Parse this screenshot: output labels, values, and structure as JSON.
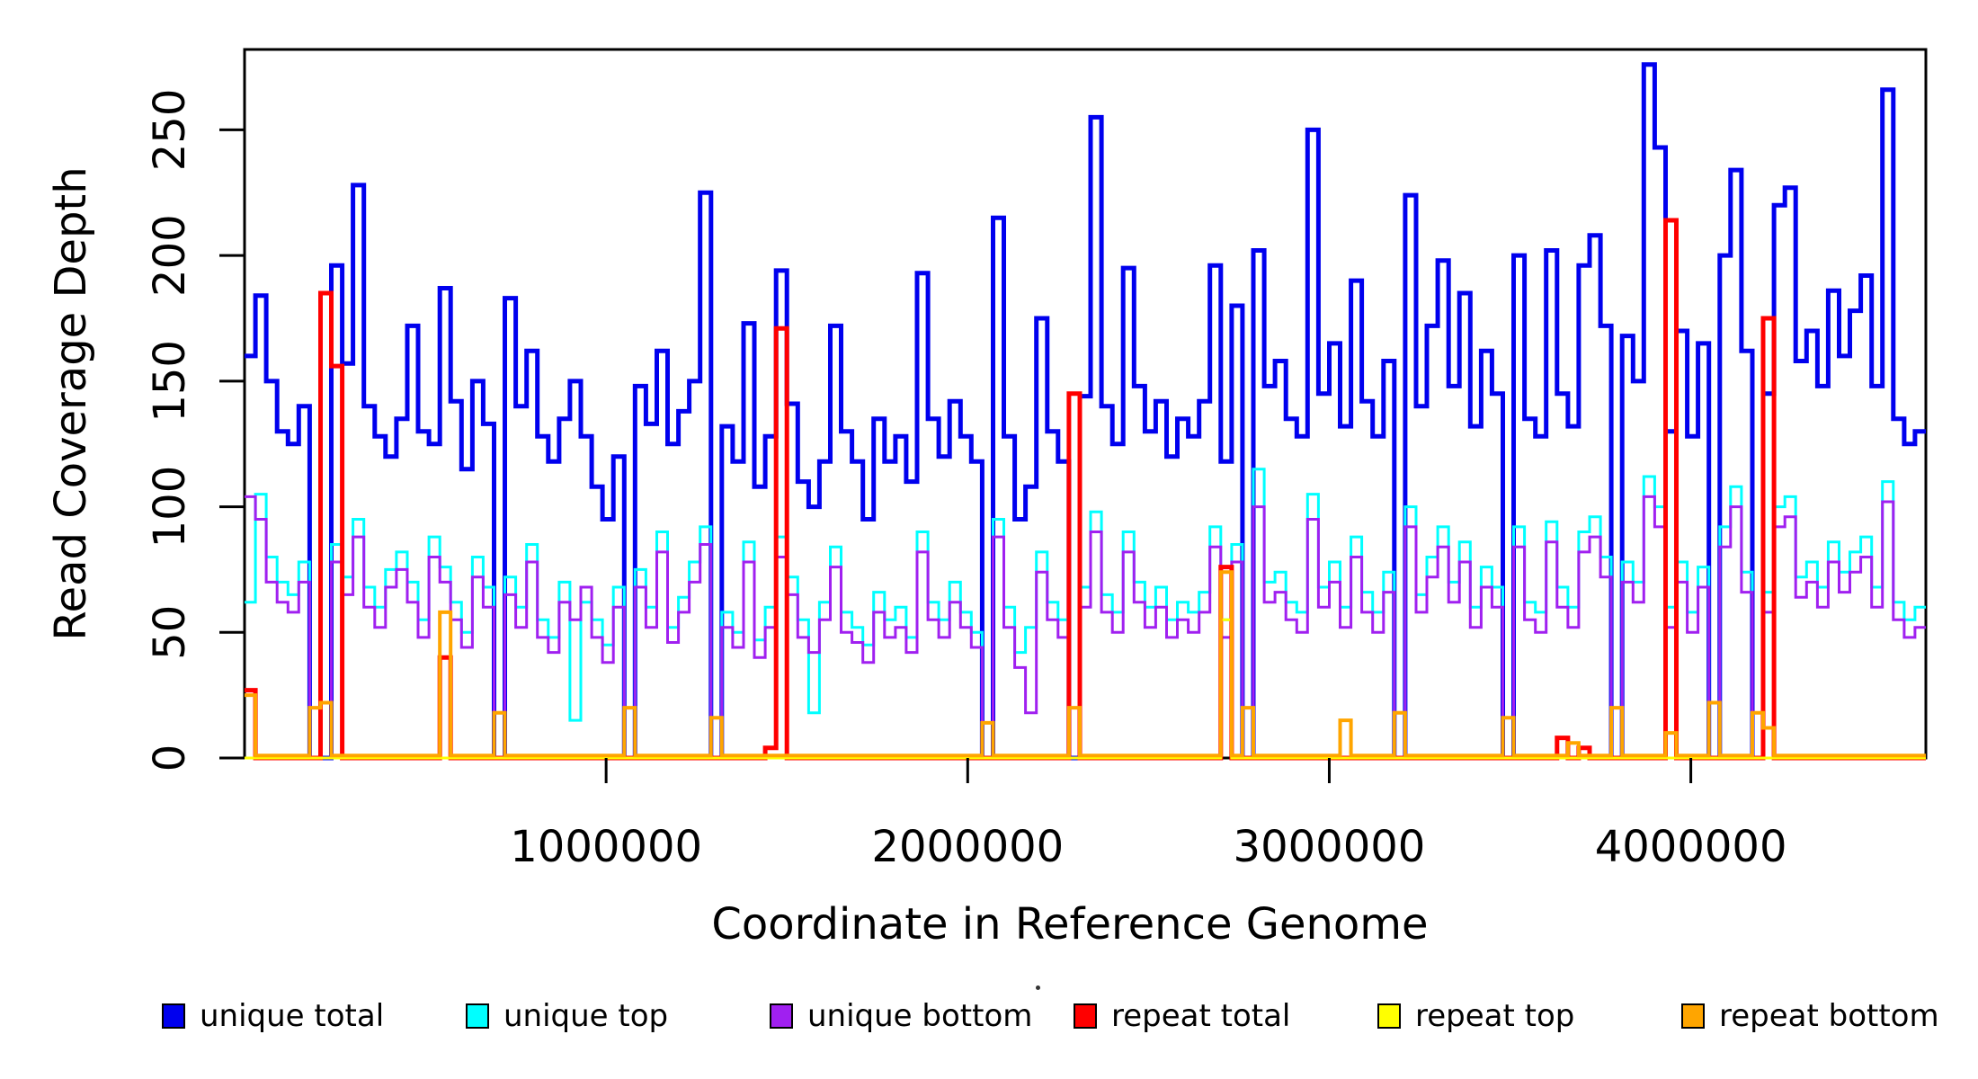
{
  "chart_data": {
    "type": "line",
    "subtype": "step",
    "title": "",
    "xlabel": "Coordinate in Reference Genome",
    "ylabel": "Read Coverage Depth",
    "xlim": [
      0,
      4650000
    ],
    "ylim": [
      0,
      282
    ],
    "x_ticks": [
      1000000,
      2000000,
      3000000,
      4000000
    ],
    "y_ticks": [
      0,
      50,
      100,
      150,
      200,
      250
    ],
    "grid": "off",
    "legend_position": "bottom",
    "window_size": 30000,
    "series": [
      {
        "name": "unique total",
        "color": "#0000EE",
        "width": 5,
        "values": [
          160,
          184,
          150,
          130,
          125,
          140,
          0,
          0,
          196,
          157,
          228,
          140,
          128,
          120,
          135,
          172,
          130,
          125,
          187,
          142,
          115,
          150,
          133,
          0,
          183,
          140,
          162,
          128,
          118,
          135,
          150,
          128,
          108,
          95,
          120,
          0,
          148,
          133,
          162,
          125,
          138,
          150,
          225,
          0,
          132,
          118,
          173,
          108,
          128,
          194,
          141,
          110,
          100,
          118,
          172,
          130,
          118,
          95,
          135,
          118,
          128,
          110,
          193,
          135,
          120,
          142,
          128,
          118,
          0,
          215,
          128,
          95,
          108,
          175,
          130,
          118,
          0,
          144,
          255,
          140,
          125,
          195,
          148,
          130,
          142,
          120,
          135,
          128,
          142,
          196,
          118,
          180,
          0,
          202,
          148,
          158,
          135,
          128,
          250,
          145,
          165,
          132,
          190,
          142,
          128,
          158,
          0,
          224,
          140,
          172,
          198,
          148,
          185,
          132,
          162,
          145,
          0,
          200,
          135,
          128,
          202,
          145,
          132,
          196,
          208,
          172,
          0,
          168,
          150,
          276,
          243,
          130,
          170,
          128,
          165,
          0,
          200,
          234,
          162,
          0,
          145,
          220,
          227,
          158,
          170,
          148,
          186,
          160,
          178,
          192,
          148,
          266,
          135,
          125,
          130
        ]
      },
      {
        "name": "unique top",
        "color": "#00FFFF",
        "width": 3,
        "values": [
          62,
          105,
          80,
          70,
          65,
          78,
          0,
          0,
          85,
          72,
          95,
          68,
          60,
          75,
          82,
          70,
          55,
          88,
          76,
          62,
          50,
          80,
          68,
          0,
          72,
          60,
          85,
          55,
          48,
          70,
          15,
          62,
          55,
          45,
          68,
          0,
          75,
          60,
          90,
          52,
          64,
          78,
          92,
          0,
          58,
          50,
          86,
          47,
          60,
          88,
          72,
          55,
          18,
          62,
          84,
          58,
          52,
          45,
          66,
          55,
          60,
          48,
          90,
          62,
          55,
          70,
          58,
          50,
          0,
          95,
          60,
          42,
          52,
          82,
          62,
          55,
          0,
          68,
          98,
          65,
          58,
          90,
          70,
          60,
          68,
          55,
          62,
          58,
          66,
          92,
          55,
          85,
          0,
          115,
          70,
          74,
          62,
          58,
          105,
          68,
          78,
          60,
          88,
          66,
          58,
          74,
          0,
          100,
          65,
          80,
          92,
          70,
          86,
          60,
          76,
          68,
          0,
          92,
          62,
          58,
          94,
          68,
          60,
          90,
          96,
          80,
          0,
          78,
          70,
          112,
          100,
          60,
          78,
          58,
          76,
          0,
          92,
          108,
          74,
          0,
          66,
          100,
          104,
          72,
          78,
          68,
          86,
          74,
          82,
          88,
          68,
          110,
          62,
          55,
          60
        ]
      },
      {
        "name": "unique bottom",
        "color": "#A020F0",
        "width": 3,
        "values": [
          104,
          95,
          70,
          62,
          58,
          70,
          0,
          0,
          78,
          65,
          88,
          60,
          52,
          68,
          75,
          62,
          48,
          80,
          70,
          55,
          44,
          72,
          60,
          0,
          65,
          52,
          78,
          48,
          42,
          62,
          55,
          68,
          48,
          38,
          60,
          0,
          68,
          52,
          82,
          46,
          58,
          70,
          85,
          0,
          52,
          44,
          78,
          40,
          52,
          80,
          65,
          48,
          42,
          55,
          76,
          50,
          46,
          38,
          58,
          48,
          52,
          42,
          82,
          55,
          48,
          62,
          52,
          44,
          0,
          88,
          52,
          36,
          18,
          74,
          55,
          48,
          0,
          60,
          90,
          58,
          50,
          82,
          62,
          52,
          60,
          48,
          55,
          50,
          58,
          84,
          48,
          78,
          0,
          100,
          62,
          66,
          55,
          50,
          95,
          60,
          70,
          52,
          80,
          58,
          50,
          66,
          0,
          92,
          58,
          72,
          84,
          62,
          78,
          52,
          68,
          60,
          0,
          84,
          55,
          50,
          86,
          60,
          52,
          82,
          88,
          72,
          0,
          70,
          62,
          104,
          92,
          52,
          70,
          50,
          68,
          0,
          84,
          100,
          66,
          0,
          58,
          92,
          96,
          64,
          70,
          60,
          78,
          66,
          74,
          80,
          60,
          102,
          55,
          48,
          52
        ]
      },
      {
        "name": "repeat total",
        "color": "#FF0000",
        "width": 5,
        "values": [
          27,
          0,
          0,
          0,
          0,
          0,
          0,
          185,
          156,
          0,
          0,
          0,
          0,
          0,
          0,
          0,
          0,
          0,
          40,
          0,
          0,
          0,
          0,
          0,
          0,
          0,
          0,
          0,
          0,
          0,
          0,
          0,
          0,
          0,
          0,
          0,
          0,
          0,
          0,
          0,
          0,
          0,
          0,
          0,
          0,
          0,
          0,
          0,
          4,
          171,
          0,
          0,
          0,
          0,
          0,
          0,
          0,
          0,
          0,
          0,
          0,
          0,
          0,
          0,
          0,
          0,
          0,
          0,
          0,
          0,
          0,
          0,
          0,
          0,
          0,
          0,
          145,
          0,
          0,
          0,
          0,
          0,
          0,
          0,
          0,
          0,
          0,
          0,
          0,
          0,
          76,
          0,
          0,
          0,
          0,
          0,
          0,
          0,
          0,
          0,
          0,
          0,
          0,
          0,
          0,
          0,
          0,
          0,
          0,
          0,
          0,
          0,
          0,
          0,
          0,
          0,
          0,
          0,
          0,
          0,
          0,
          8,
          0,
          4,
          0,
          0,
          0,
          0,
          0,
          0,
          0,
          214,
          0,
          0,
          0,
          0,
          0,
          0,
          0,
          0,
          175,
          0,
          0,
          0,
          0,
          0,
          0,
          0,
          0,
          0,
          0,
          0,
          0,
          0,
          0
        ]
      },
      {
        "name": "repeat top",
        "color": "#FFFF00",
        "width": 3,
        "values": [
          0,
          0,
          0,
          0,
          0,
          0,
          0,
          0,
          0,
          0,
          0,
          0,
          0,
          0,
          0,
          0,
          0,
          0,
          0,
          0,
          0,
          0,
          0,
          0,
          0,
          0,
          0,
          0,
          0,
          0,
          0,
          0,
          0,
          0,
          0,
          0,
          0,
          0,
          0,
          0,
          0,
          0,
          0,
          0,
          0,
          0,
          0,
          0,
          0,
          0,
          0,
          0,
          0,
          0,
          0,
          0,
          0,
          0,
          0,
          0,
          0,
          0,
          0,
          0,
          0,
          0,
          0,
          0,
          0,
          0,
          0,
          0,
          0,
          0,
          0,
          0,
          0,
          0,
          0,
          0,
          0,
          0,
          0,
          0,
          0,
          0,
          0,
          0,
          0,
          0,
          55,
          0,
          0,
          0,
          0,
          0,
          0,
          0,
          0,
          0,
          0,
          0,
          0,
          0,
          0,
          0,
          0,
          0,
          0,
          0,
          0,
          0,
          0,
          0,
          0,
          0,
          0,
          0,
          0,
          0,
          0,
          0,
          0,
          0,
          0,
          0,
          0,
          0,
          0,
          0,
          0,
          0,
          0,
          0,
          0,
          0,
          0,
          0,
          0,
          0,
          0,
          0,
          0,
          0,
          0,
          0,
          0,
          0,
          0,
          0,
          0,
          0,
          0,
          0,
          0
        ]
      },
      {
        "name": "repeat bottom",
        "color": "#FFA500",
        "width": 4,
        "values": [
          25,
          1,
          1,
          1,
          1,
          1,
          20,
          22,
          1,
          1,
          1,
          1,
          1,
          1,
          1,
          1,
          1,
          1,
          58,
          1,
          1,
          1,
          1,
          18,
          1,
          1,
          1,
          1,
          1,
          1,
          1,
          1,
          1,
          1,
          1,
          20,
          1,
          1,
          1,
          1,
          1,
          1,
          1,
          16,
          1,
          1,
          1,
          1,
          1,
          1,
          1,
          1,
          1,
          1,
          1,
          1,
          1,
          1,
          1,
          1,
          1,
          1,
          1,
          1,
          1,
          1,
          1,
          1,
          14,
          1,
          1,
          1,
          1,
          1,
          1,
          1,
          20,
          1,
          1,
          1,
          1,
          1,
          1,
          1,
          1,
          1,
          1,
          1,
          1,
          1,
          74,
          1,
          20,
          1,
          1,
          1,
          1,
          1,
          1,
          1,
          1,
          15,
          1,
          1,
          1,
          1,
          18,
          1,
          1,
          1,
          1,
          1,
          1,
          1,
          1,
          1,
          16,
          1,
          1,
          1,
          1,
          1,
          6,
          1,
          1,
          1,
          20,
          1,
          1,
          1,
          1,
          10,
          1,
          1,
          1,
          22,
          1,
          1,
          1,
          18,
          12,
          1,
          1,
          1,
          1,
          1,
          1,
          1,
          1,
          1,
          1,
          1,
          1,
          1,
          1
        ]
      }
    ]
  },
  "legend": {
    "stray_mark": "·"
  }
}
